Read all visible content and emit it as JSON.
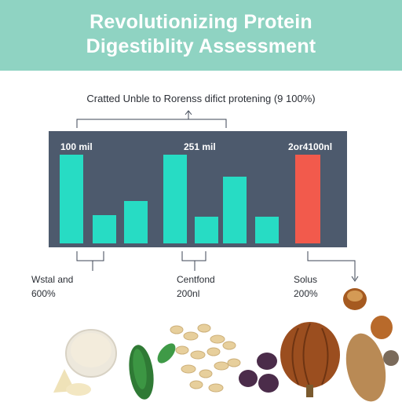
{
  "header": {
    "title_line1": "Revolutionizing Protein",
    "title_line2": "Digestiblity Assessment",
    "banner_color": "#8fd3c2"
  },
  "caption": "Cratted Unble to Rorenss difict protening (9 100%)",
  "chart_data": {
    "type": "bar",
    "value_labels": [
      "100 mil",
      "251 mil",
      "2or4100nl"
    ],
    "groups": [
      {
        "label_line1": "Wstal and",
        "label_line2": "600%"
      },
      {
        "label_line1": "Centfond",
        "label_line2": "200nl"
      },
      {
        "label_line1": "Solus",
        "label_line2": "200%"
      }
    ],
    "bars": [
      {
        "group": 0,
        "value": 100,
        "color": "#27dcc4"
      },
      {
        "group": 0,
        "value": 32,
        "color": "#27dcc4"
      },
      {
        "group": 0,
        "value": 48,
        "color": "#27dcc4"
      },
      {
        "group": 1,
        "value": 100,
        "color": "#27dcc4"
      },
      {
        "group": 1,
        "value": 30,
        "color": "#27dcc4"
      },
      {
        "group": 1,
        "value": 75,
        "color": "#27dcc4"
      },
      {
        "group": 1,
        "value": 30,
        "color": "#27dcc4"
      },
      {
        "group": 2,
        "value": 100,
        "color": "#f25a4c"
      }
    ],
    "background_color": "#4d5a6d",
    "grid": false
  }
}
